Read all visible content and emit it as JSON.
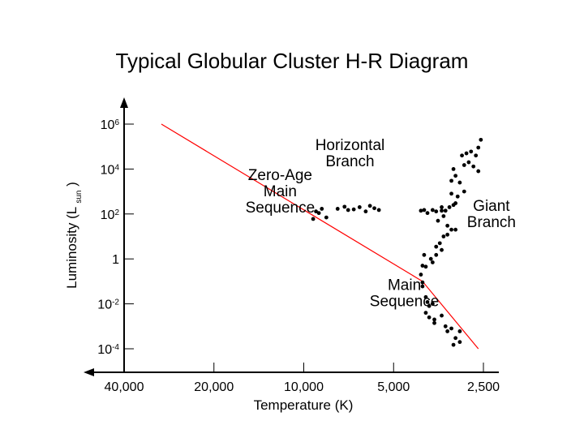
{
  "chart_data": {
    "type": "scatter",
    "title": "Typical Globular Cluster H-R Diagram",
    "xlabel": "Temperature (K)",
    "ylabel": {
      "main": "Luminosity (L",
      "sub": "sun",
      "close": ")"
    },
    "x_scale": "reverse-log",
    "y_scale": "log",
    "xlim": [
      40000,
      2500
    ],
    "ylim": [
      0.0001,
      1000000
    ],
    "x_ticks": [
      {
        "value": 40000,
        "label": "40,000"
      },
      {
        "value": 20000,
        "label": "20,000"
      },
      {
        "value": 10000,
        "label": "10,000"
      },
      {
        "value": 5000,
        "label": "5,000"
      },
      {
        "value": 2500,
        "label": "2,500"
      }
    ],
    "y_ticks": [
      {
        "value": 1000000,
        "base": "10",
        "exp": "6"
      },
      {
        "value": 10000,
        "base": "10",
        "exp": "4"
      },
      {
        "value": 100,
        "base": "10",
        "exp": "2"
      },
      {
        "value": 1,
        "base": "1",
        "exp": ""
      },
      {
        "value": 0.01,
        "base": "10",
        "exp": "-2"
      },
      {
        "value": 0.0001,
        "base": "10",
        "exp": "-4"
      }
    ],
    "annotations": [
      {
        "lines": [
          "Zero-Age",
          "Main",
          "Sequence"
        ],
        "anchor": [
          12000,
          1000
        ]
      },
      {
        "lines": [
          "Horizontal",
          "Branch"
        ],
        "anchor": [
          7000,
          50000
        ]
      },
      {
        "lines": [
          "Giant",
          "Branch"
        ],
        "anchor": [
          2350,
          100
        ]
      },
      {
        "lines": [
          "Main",
          "Sequence"
        ],
        "anchor": [
          4600,
          0.03
        ]
      }
    ],
    "zams_line": {
      "color": "#ff0000",
      "points": [
        [
          30000,
          1000000
        ],
        [
          4000,
          0.1
        ],
        [
          2600,
          0.0001
        ]
      ]
    },
    "series": [
      {
        "color": "#000000",
        "points": [
          [
            9300,
            60
          ],
          [
            9100,
            130
          ],
          [
            8900,
            110
          ],
          [
            8700,
            170
          ],
          [
            8400,
            70
          ],
          [
            7700,
            170
          ],
          [
            7300,
            210
          ],
          [
            7100,
            150
          ],
          [
            6800,
            160
          ],
          [
            6500,
            200
          ],
          [
            6200,
            130
          ],
          [
            6000,
            230
          ],
          [
            5800,
            180
          ],
          [
            5600,
            150
          ],
          [
            4050,
            140
          ],
          [
            3950,
            150
          ],
          [
            3850,
            110
          ],
          [
            3700,
            150
          ],
          [
            3600,
            130
          ],
          [
            3450,
            140
          ],
          [
            3350,
            140
          ],
          [
            3150,
            250
          ],
          [
            3100,
            20
          ],
          [
            3400,
            10
          ],
          [
            3300,
            12
          ],
          [
            3200,
            20
          ],
          [
            3300,
            30
          ],
          [
            3500,
            5
          ],
          [
            3600,
            3.5
          ],
          [
            3450,
            2.5
          ],
          [
            3600,
            1.5
          ],
          [
            3750,
            1
          ],
          [
            3900,
            0.45
          ],
          [
            3700,
            0.7
          ],
          [
            3950,
            1.5
          ],
          [
            4000,
            0.5
          ],
          [
            4050,
            0.2
          ],
          [
            4000,
            0.09
          ],
          [
            4000,
            0.06
          ],
          [
            3900,
            0.02
          ],
          [
            3850,
            0.012
          ],
          [
            3800,
            0.008
          ],
          [
            3700,
            0.01
          ],
          [
            3900,
            0.004
          ],
          [
            3800,
            0.0025
          ],
          [
            3650,
            0.0014
          ],
          [
            3650,
            0.002
          ],
          [
            3450,
            0.003
          ],
          [
            3350,
            0.001
          ],
          [
            3200,
            0.0008
          ],
          [
            3300,
            0.0006
          ],
          [
            3150,
            0.00015
          ],
          [
            3000,
            0.0002
          ],
          [
            3100,
            0.0003
          ],
          [
            3000,
            0.0006
          ],
          [
            3000,
            2500
          ],
          [
            3100,
            5000
          ],
          [
            2900,
            15000
          ],
          [
            3150,
            10000
          ],
          [
            3200,
            3000
          ],
          [
            2950,
            40000
          ],
          [
            2800,
            20000
          ],
          [
            2650,
            40000
          ],
          [
            2600,
            90000
          ],
          [
            2550,
            200000
          ],
          [
            2750,
            60000
          ],
          [
            2700,
            13000
          ],
          [
            2600,
            8000
          ],
          [
            2850,
            50000
          ],
          [
            3200,
            800
          ],
          [
            3250,
            200
          ],
          [
            3100,
            300
          ],
          [
            3050,
            600
          ],
          [
            2900,
            1000
          ],
          [
            3450,
            200
          ],
          [
            3400,
            80
          ],
          [
            3550,
            50
          ]
        ]
      }
    ],
    "grid": false,
    "legend": "none"
  }
}
